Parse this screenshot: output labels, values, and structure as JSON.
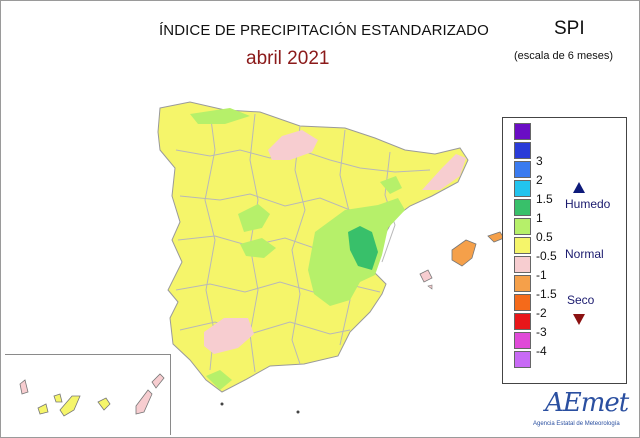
{
  "header": {
    "title": "ÍNDICE DE PRECIPITACIÓN ESTANDARIZADO",
    "subtitle": "abril 2021",
    "index": "SPI",
    "scale": "(escala de 6 meses)"
  },
  "legend": {
    "classes": [
      {
        "label": "",
        "color": "#6a0dc4"
      },
      {
        "label": "3",
        "color": "#2a3bd8"
      },
      {
        "label": "2",
        "color": "#3a7bf0"
      },
      {
        "label": "1.5",
        "color": "#22c4ee"
      },
      {
        "label": "1",
        "color": "#38c06a"
      },
      {
        "label": "0.5",
        "color": "#b6f06a"
      },
      {
        "label": "-0.5",
        "color": "#f5f56a"
      },
      {
        "label": "-1",
        "color": "#f7cdd0"
      },
      {
        "label": "-1.5",
        "color": "#f5a04a"
      },
      {
        "label": "-2",
        "color": "#f56a1a"
      },
      {
        "label": "-3",
        "color": "#e8161a"
      },
      {
        "label": "-4",
        "color": "#e04ad8"
      },
      {
        "label": "",
        "color": "#c86af5"
      }
    ],
    "wet_label": "Humedo",
    "normal_label": "Normal",
    "dry_label": "Seco"
  },
  "logo": {
    "name": "AEmet",
    "caption": "Agencia Estatal de Meteorología"
  },
  "colors": {
    "normal": "#f5f56a",
    "wet": "#b6f06a",
    "very_wet": "#38c06a",
    "dry": "#f7cdd0",
    "very_dry": "#f5a04a",
    "border": "#b0b0b0"
  }
}
